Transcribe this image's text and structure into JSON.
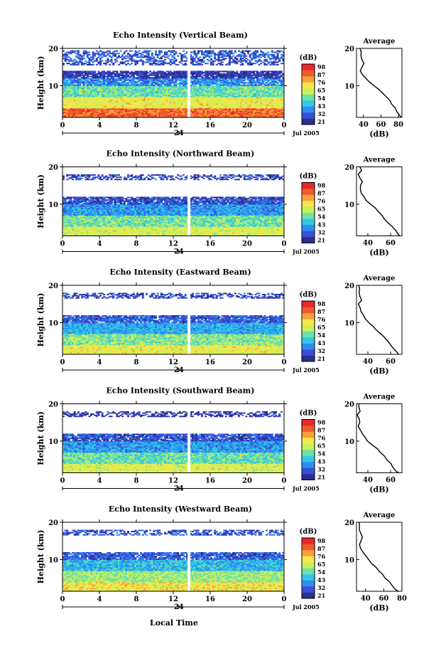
{
  "figure": {
    "colorbar_unit": "(dB)",
    "colorbar_ticks": [
      "98",
      "87",
      "76",
      "65",
      "54",
      "43",
      "32",
      "21"
    ],
    "date_label": "Jul 2005",
    "date_marker": "24",
    "time_ticks": [
      "0",
      "4",
      "8",
      "12",
      "16",
      "20",
      "0"
    ],
    "y_ticks": [
      "20",
      "10"
    ],
    "ylabel": "Height (km)",
    "xlabel": "Local Time",
    "average_title": "Average",
    "average_xlabel": "(dB)",
    "colormap": [
      "#2b2f8f",
      "#3a4fd6",
      "#2f8df0",
      "#30c8e6",
      "#6fe0a8",
      "#c9ef5a",
      "#f6e64b",
      "#f7a13a",
      "#ef5a2a",
      "#e8282a"
    ]
  },
  "chart_data": [
    {
      "type": "heatmap",
      "title": "Echo Intensity (Vertical Beam)",
      "xlabel": "Local Time",
      "ylabel": "Height (km)",
      "xlim": [
        0,
        24
      ],
      "ylim": [
        1.5,
        20
      ],
      "clim": [
        21,
        98
      ],
      "data_gap_hour": 13.7,
      "layers": [
        {
          "height_from": 1.5,
          "height_to": 4,
          "db": 85
        },
        {
          "height_from": 4,
          "height_to": 7,
          "db": 68
        },
        {
          "height_from": 7,
          "height_to": 10,
          "db": 55
        },
        {
          "height_from": 10,
          "height_to": 12,
          "db": 40
        },
        {
          "height_from": 12,
          "height_to": 14,
          "db": 28
        },
        {
          "height_from": 15.5,
          "height_to": 17.5,
          "db": 32
        },
        {
          "height_from": 17.5,
          "height_to": 19.5,
          "db": 34
        }
      ],
      "average": {
        "title": "Average",
        "xlabel": "(dB)",
        "xticks": [
          "40",
          "60",
          "80"
        ],
        "xlim": [
          32,
          84
        ],
        "profile": [
          [
            1.5,
            83
          ],
          [
            2,
            82
          ],
          [
            3,
            78
          ],
          [
            4,
            76
          ],
          [
            5,
            73
          ],
          [
            6,
            70
          ],
          [
            7,
            66
          ],
          [
            8,
            62
          ],
          [
            9,
            58
          ],
          [
            10,
            52
          ],
          [
            11,
            46
          ],
          [
            12,
            42
          ],
          [
            13,
            38
          ],
          [
            14,
            37
          ],
          [
            15,
            38
          ],
          [
            16,
            40
          ],
          [
            17,
            39
          ],
          [
            18,
            37
          ],
          [
            19,
            38
          ],
          [
            20,
            36
          ]
        ]
      }
    },
    {
      "type": "heatmap",
      "title": "Echo Intensity (Northward Beam)",
      "xlabel": "Local Time",
      "ylabel": "Height (km)",
      "xlim": [
        0,
        24
      ],
      "ylim": [
        1.5,
        20
      ],
      "clim": [
        21,
        98
      ],
      "data_gap_hour": 13.7,
      "layers": [
        {
          "height_from": 1.5,
          "height_to": 4,
          "db": 66
        },
        {
          "height_from": 4,
          "height_to": 7,
          "db": 56
        },
        {
          "height_from": 7,
          "height_to": 10,
          "db": 42
        },
        {
          "height_from": 10,
          "height_to": 12,
          "db": 32
        },
        {
          "height_from": 16.5,
          "height_to": 18,
          "db": 30
        }
      ],
      "average": {
        "title": "Average",
        "xlabel": "(dB)",
        "xticks": [
          "40",
          "60"
        ],
        "xlim": [
          30,
          70
        ],
        "profile": [
          [
            1.5,
            68
          ],
          [
            2,
            66
          ],
          [
            3,
            64
          ],
          [
            4,
            61
          ],
          [
            5,
            58
          ],
          [
            6,
            55
          ],
          [
            7,
            52
          ],
          [
            8,
            49
          ],
          [
            9,
            46
          ],
          [
            10,
            42
          ],
          [
            11,
            39
          ],
          [
            12,
            36
          ],
          [
            13,
            34
          ],
          [
            14,
            33
          ],
          [
            15,
            34
          ],
          [
            16,
            35
          ],
          [
            17,
            33
          ],
          [
            18,
            32
          ],
          [
            19,
            34
          ],
          [
            20,
            33
          ]
        ]
      }
    },
    {
      "type": "heatmap",
      "title": "Echo Intensity (Eastward Beam)",
      "xlabel": "Local Time",
      "ylabel": "Height (km)",
      "xlim": [
        0,
        24
      ],
      "ylim": [
        1.5,
        20
      ],
      "clim": [
        21,
        98
      ],
      "data_gap_hour": 13.7,
      "layers": [
        {
          "height_from": 1.5,
          "height_to": 4,
          "db": 68
        },
        {
          "height_from": 4,
          "height_to": 7,
          "db": 58
        },
        {
          "height_from": 7,
          "height_to": 10,
          "db": 44
        },
        {
          "height_from": 10,
          "height_to": 12,
          "db": 34
        },
        {
          "height_from": 16.5,
          "height_to": 18,
          "db": 30
        }
      ],
      "average": {
        "title": "Average",
        "xlabel": "(dB)",
        "xticks": [
          "40",
          "60"
        ],
        "xlim": [
          30,
          70
        ],
        "profile": [
          [
            1.5,
            67
          ],
          [
            2,
            66
          ],
          [
            3,
            63
          ],
          [
            4,
            60
          ],
          [
            5,
            58
          ],
          [
            6,
            55
          ],
          [
            7,
            52
          ],
          [
            8,
            48
          ],
          [
            9,
            45
          ],
          [
            10,
            41
          ],
          [
            11,
            38
          ],
          [
            12,
            36
          ],
          [
            13,
            34
          ],
          [
            14,
            33
          ],
          [
            15,
            32
          ],
          [
            16,
            34
          ],
          [
            17,
            33
          ],
          [
            18,
            32
          ],
          [
            19,
            33
          ],
          [
            20,
            32
          ]
        ]
      }
    },
    {
      "type": "heatmap",
      "title": "Echo Intensity (Southward Beam)",
      "xlabel": "Local Time",
      "ylabel": "Height (km)",
      "xlim": [
        0,
        24
      ],
      "ylim": [
        1.5,
        20
      ],
      "clim": [
        21,
        98
      ],
      "data_gap_hour": 13.7,
      "layers": [
        {
          "height_from": 1.5,
          "height_to": 4,
          "db": 66
        },
        {
          "height_from": 4,
          "height_to": 7,
          "db": 55
        },
        {
          "height_from": 7,
          "height_to": 10,
          "db": 42
        },
        {
          "height_from": 10,
          "height_to": 12,
          "db": 32
        },
        {
          "height_from": 16.5,
          "height_to": 18,
          "db": 28
        }
      ],
      "average": {
        "title": "Average",
        "xlabel": "(dB)",
        "xticks": [
          "40",
          "60"
        ],
        "xlim": [
          30,
          70
        ],
        "profile": [
          [
            1.5,
            67
          ],
          [
            2,
            65
          ],
          [
            3,
            62
          ],
          [
            4,
            60
          ],
          [
            5,
            57
          ],
          [
            6,
            54
          ],
          [
            7,
            51
          ],
          [
            8,
            48
          ],
          [
            9,
            44
          ],
          [
            10,
            40
          ],
          [
            11,
            37
          ],
          [
            12,
            35
          ],
          [
            13,
            33
          ],
          [
            14,
            32
          ],
          [
            15,
            33
          ],
          [
            16,
            32
          ],
          [
            17,
            31
          ],
          [
            18,
            33
          ],
          [
            19,
            32
          ],
          [
            20,
            32
          ]
        ]
      }
    },
    {
      "type": "heatmap",
      "title": "Echo Intensity (Westward Beam)",
      "xlabel": "Local Time",
      "ylabel": "Height (km)",
      "xlim": [
        0,
        24
      ],
      "ylim": [
        1.5,
        20
      ],
      "clim": [
        21,
        98
      ],
      "data_gap_hour": 13.7,
      "layers": [
        {
          "height_from": 1.5,
          "height_to": 4,
          "db": 70
        },
        {
          "height_from": 4,
          "height_to": 7,
          "db": 60
        },
        {
          "height_from": 7,
          "height_to": 10,
          "db": 46
        },
        {
          "height_from": 10,
          "height_to": 12,
          "db": 34
        },
        {
          "height_from": 16.5,
          "height_to": 18,
          "db": 32
        }
      ],
      "average": {
        "title": "Average",
        "xlabel": "(dB)",
        "xticks": [
          "40",
          "60",
          "80"
        ],
        "xlim": [
          30,
          80
        ],
        "profile": [
          [
            1.5,
            76
          ],
          [
            2,
            73
          ],
          [
            3,
            70
          ],
          [
            4,
            66
          ],
          [
            5,
            62
          ],
          [
            6,
            59
          ],
          [
            7,
            55
          ],
          [
            8,
            51
          ],
          [
            9,
            47
          ],
          [
            10,
            43
          ],
          [
            11,
            40
          ],
          [
            12,
            37
          ],
          [
            13,
            35
          ],
          [
            14,
            34
          ],
          [
            15,
            35
          ],
          [
            16,
            36
          ],
          [
            17,
            34
          ],
          [
            18,
            33
          ],
          [
            19,
            34
          ],
          [
            20,
            33
          ]
        ]
      }
    }
  ]
}
